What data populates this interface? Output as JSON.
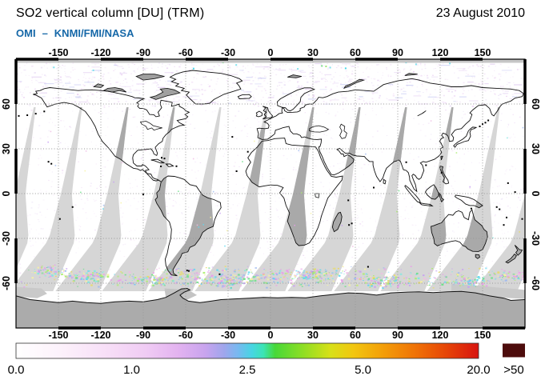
{
  "header": {
    "title": "SO2 vertical column [DU] (TRM)",
    "date": "23 August 2010",
    "source_instrument": "OMI",
    "source_separator": "–",
    "source_agencies": "KNMI/FMI/NASA"
  },
  "map": {
    "lon_tick_labels": [
      "-150",
      "-120",
      "-90",
      "-60",
      "-30",
      "0",
      "30",
      "60",
      "90",
      "120",
      "150"
    ],
    "lon_tick_values": [
      -150,
      -120,
      -90,
      -60,
      -30,
      0,
      30,
      60,
      90,
      120,
      150
    ],
    "lat_tick_labels": [
      "60",
      "30",
      "0",
      "-30",
      "-60"
    ],
    "lat_tick_values": [
      60,
      30,
      0,
      -30,
      -60
    ],
    "lon_range": [
      -180,
      180
    ],
    "lat_range": [
      -90,
      90
    ],
    "grid_step_deg": 30
  },
  "colorbar": {
    "unit": "DU",
    "tick_labels": [
      "0.0",
      "1.0",
      "2.5",
      "5.0",
      "20.0"
    ],
    "tick_values": [
      0.0,
      1.0,
      2.5,
      5.0,
      20.0
    ],
    "overflow_label": ">50",
    "overflow_color": "#4d0c0c",
    "gradient_stops": [
      [
        0.0,
        "#ffffff"
      ],
      [
        0.1,
        "#fcf1fb"
      ],
      [
        0.2,
        "#f7def7"
      ],
      [
        0.28,
        "#f0ccf4"
      ],
      [
        0.35,
        "#e3b3f0"
      ],
      [
        0.41,
        "#c8a4ee"
      ],
      [
        0.45,
        "#9fa6ec"
      ],
      [
        0.48,
        "#77b9f0"
      ],
      [
        0.51,
        "#47d5e3"
      ],
      [
        0.535,
        "#3ce4b4"
      ],
      [
        0.56,
        "#47d838"
      ],
      [
        0.62,
        "#8ede24"
      ],
      [
        0.68,
        "#d8e018"
      ],
      [
        0.73,
        "#f2c610"
      ],
      [
        0.8,
        "#f39a08"
      ],
      [
        0.87,
        "#ef6e06"
      ],
      [
        0.93,
        "#e64507"
      ],
      [
        1.0,
        "#d81410"
      ]
    ]
  },
  "colors": {
    "source_text": "#1668a8",
    "swath_ocean": "#d6d6d6",
    "swath_land": "#a9a9a9",
    "antarctica_fill": "#ababab",
    "antarctica_shelf": "#c9c9c9",
    "polar_strip": "#c6c6c6",
    "grid_line": "#999999",
    "coastline": "#111111",
    "frame": "#000000"
  },
  "chart_data": {
    "type": "heatmap",
    "subtype": "geographic-equirectangular",
    "title": "SO2 vertical column [DU] (TRM)",
    "date": "23 August 2010",
    "source": "OMI – KNMI/FMI/NASA",
    "unit": "DU",
    "lon_range": [
      -180,
      180
    ],
    "lat_range": [
      -90,
      90
    ],
    "lon_ticks": [
      -150,
      -120,
      -90,
      -60,
      -30,
      0,
      30,
      60,
      90,
      120,
      150
    ],
    "lat_ticks": [
      60,
      30,
      0,
      -30,
      -60
    ],
    "grid": "dotted, 30 degree spacing",
    "colorbar_scale": {
      "values": [
        0.0,
        1.0,
        2.5,
        5.0,
        20.0
      ],
      "spacing": "nonlinear, equally spaced labels",
      "overflow": ">50"
    },
    "depicted": [
      "global SO2 background below ~1 DU (white to pale pink field)",
      "gray diagonal lens-shaped no-data swaths from OMI row anomaly, ~12 orbital gaps, darker over land",
      "retrieval noise speckle band (cyan/green/magenta/yellow pixels) between about 50S and 65S",
      "solid gray no-data region over Antarctica (polar night) and thin gray strip at northern map edge",
      "no significant volcanic or anthropogenic SO2 plume visible on this day"
    ]
  }
}
